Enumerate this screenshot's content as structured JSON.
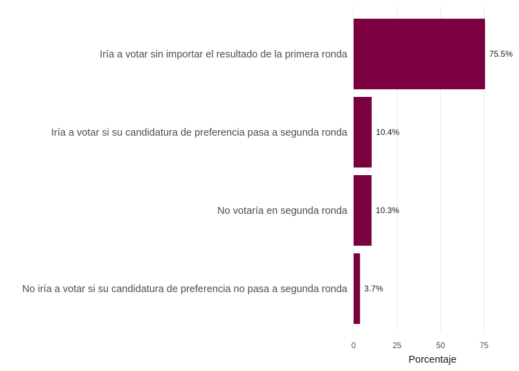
{
  "chart_data": {
    "type": "bar",
    "orientation": "horizontal",
    "categories": [
      "Iría a votar sin importar el resultado de la primera ronda",
      "Iría a votar si su candidatura de preferencia pasa a segunda ronda",
      "No votaría en segunda ronda",
      "No iría a votar si su candidatura de preferencia no pasa a segunda ronda"
    ],
    "values": [
      75.5,
      10.4,
      10.3,
      3.7
    ],
    "data_labels": [
      "75.5%",
      "10.4%",
      "10.3%",
      "3.7%"
    ],
    "xlabel": "Porcentaje",
    "ylabel": "",
    "xlim": [
      0,
      80
    ],
    "xticks": [
      0,
      25,
      50,
      75
    ],
    "xtick_labels": [
      "0",
      "25",
      "50",
      "75"
    ],
    "bar_color": "#7a0040",
    "grid": true,
    "legend": "none"
  }
}
